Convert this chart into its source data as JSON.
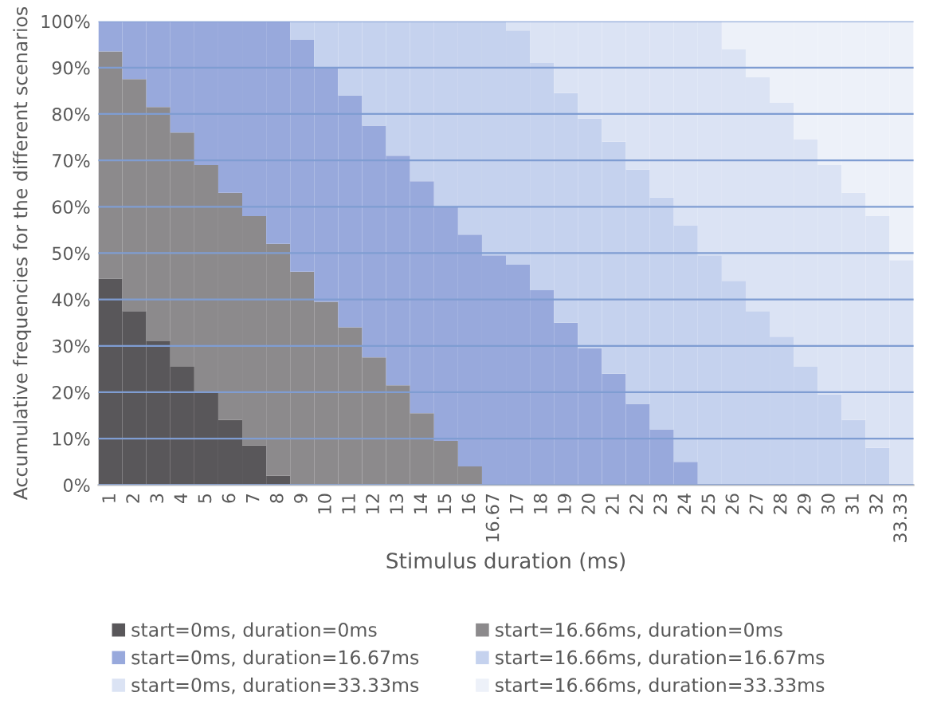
{
  "chart_data": {
    "type": "bar",
    "stacked": true,
    "xlabel": "Stimulus duration (ms)",
    "ylabel": "Accumulative frequencies for the different scenarios",
    "categories": [
      "1",
      "2",
      "3",
      "4",
      "5",
      "6",
      "7",
      "8",
      "9",
      "10",
      "11",
      "12",
      "13",
      "14",
      "15",
      "16",
      "16.67",
      "17",
      "18",
      "19",
      "20",
      "21",
      "22",
      "23",
      "24",
      "25",
      "26",
      "27",
      "28",
      "29",
      "30",
      "31",
      "32",
      "33.33"
    ],
    "series": [
      {
        "name": "start=0ms, duration=0ms",
        "color": "#59575a",
        "values": [
          44.5,
          37.5,
          31,
          25.5,
          20,
          14,
          8.5,
          2,
          0,
          0,
          0,
          0,
          0,
          0,
          0,
          0,
          0,
          0,
          0,
          0,
          0,
          0,
          0,
          0,
          0,
          0,
          0,
          0,
          0,
          0,
          0,
          0,
          0,
          0
        ]
      },
      {
        "name": "start=16.66ms, duration=0ms",
        "color": "#8c8a8c",
        "values": [
          49,
          50,
          50.5,
          50.5,
          49,
          49,
          49.5,
          50,
          46,
          39.5,
          34,
          27.5,
          21.5,
          15.5,
          9.5,
          4,
          0,
          0,
          0,
          0,
          0,
          0,
          0,
          0,
          0,
          0,
          0,
          0,
          0,
          0,
          0,
          0,
          0,
          0
        ]
      },
      {
        "name": "start=0ms, duration=16.67ms",
        "color": "#98a9dc",
        "values": [
          6.5,
          12.5,
          18.5,
          24,
          31,
          37,
          42,
          48,
          50,
          50.5,
          50,
          50,
          49.5,
          50,
          50.5,
          50,
          49.5,
          47.5,
          42,
          35,
          29.5,
          24,
          17.5,
          12,
          5,
          0,
          0,
          0,
          0,
          0,
          0,
          0,
          0,
          0
        ]
      },
      {
        "name": "start=16.66ms, duration=16.67ms",
        "color": "#c5d2ee",
        "values": [
          0,
          0,
          0,
          0,
          0,
          0,
          0,
          0,
          4,
          10,
          16,
          22.5,
          29,
          34.5,
          40,
          46,
          50.5,
          50.5,
          49,
          49.5,
          49.5,
          50,
          50.5,
          50,
          51,
          49.5,
          44,
          37.5,
          32,
          25.5,
          19.5,
          14,
          8,
          0
        ]
      },
      {
        "name": "start=0ms, duration=33.33ms",
        "color": "#dbe3f4",
        "values": [
          0,
          0,
          0,
          0,
          0,
          0,
          0,
          0,
          0,
          0,
          0,
          0,
          0,
          0,
          0,
          0,
          0,
          2,
          9,
          15.5,
          21,
          26,
          32,
          38,
          44,
          50.5,
          50,
          50.5,
          50.5,
          49,
          49.5,
          49,
          50,
          48.5
        ]
      },
      {
        "name": "start=16.66ms, duration=33.33ms",
        "color": "#edf1f9",
        "values": [
          0,
          0,
          0,
          0,
          0,
          0,
          0,
          0,
          0,
          0,
          0,
          0,
          0,
          0,
          0,
          0,
          0,
          0,
          0,
          0,
          0,
          0,
          0,
          0,
          0,
          0,
          6,
          12,
          17.5,
          25.5,
          31,
          37,
          42,
          51.5
        ]
      }
    ],
    "ylim": [
      0,
      100
    ],
    "yticks": [
      {
        "value": 0,
        "label": "0%"
      },
      {
        "value": 10,
        "label": "10%"
      },
      {
        "value": 20,
        "label": "20%"
      },
      {
        "value": 30,
        "label": "30%"
      },
      {
        "value": 40,
        "label": "40%"
      },
      {
        "value": 50,
        "label": "50%"
      },
      {
        "value": 60,
        "label": "60%"
      },
      {
        "value": 70,
        "label": "70%"
      },
      {
        "value": 80,
        "label": "80%"
      },
      {
        "value": 90,
        "label": "90%"
      },
      {
        "value": 100,
        "label": "100%"
      }
    ],
    "grid": "y",
    "legend": "bottom"
  }
}
